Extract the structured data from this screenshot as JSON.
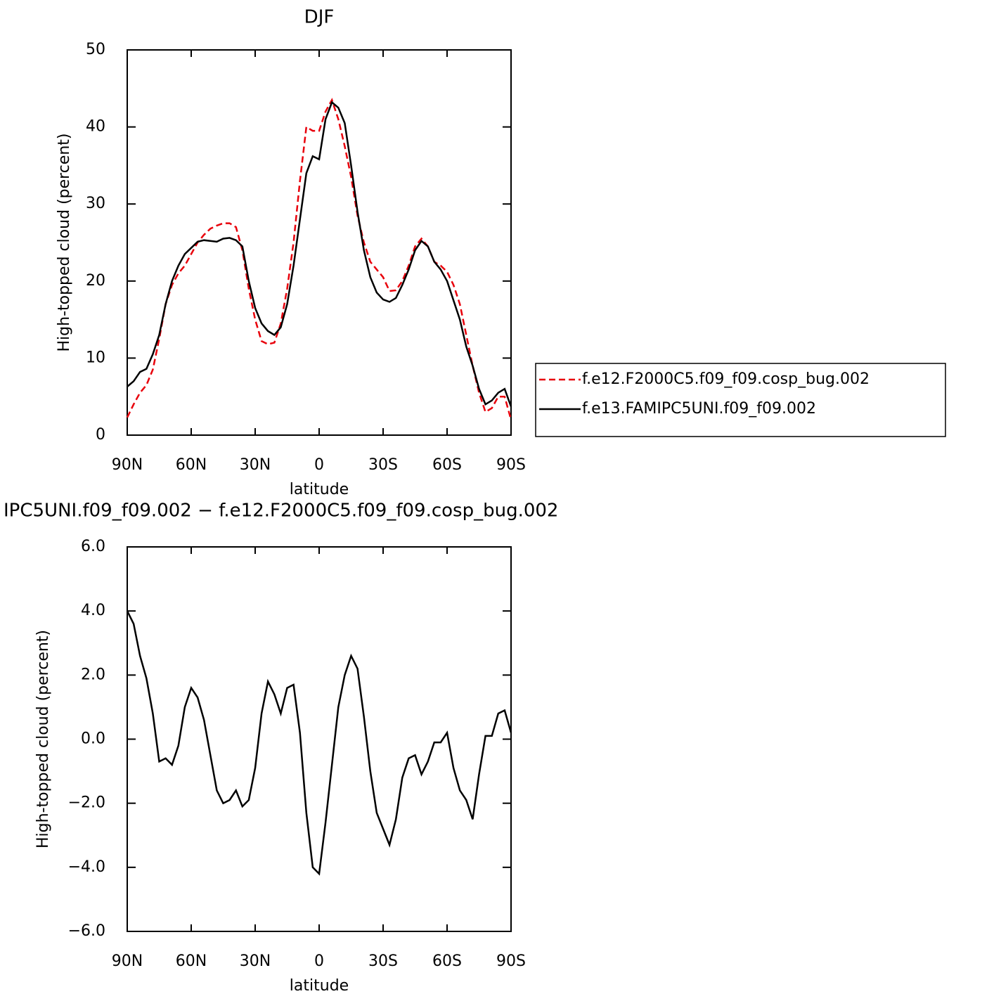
{
  "chart_data": [
    {
      "type": "line",
      "title": "DJF",
      "xlabel": "latitude",
      "ylabel": "High-topped cloud (percent)",
      "x": [
        90,
        87,
        84,
        81,
        78,
        75,
        72,
        69,
        66,
        63,
        60,
        57,
        54,
        51,
        48,
        45,
        42,
        39,
        36,
        33,
        30,
        27,
        24,
        21,
        18,
        15,
        12,
        9,
        6,
        3,
        0,
        -3,
        -6,
        -9,
        -12,
        -15,
        -18,
        -21,
        -24,
        -27,
        -30,
        -33,
        -36,
        -39,
        -42,
        -45,
        -48,
        -51,
        -54,
        -57,
        -60,
        -63,
        -66,
        -69,
        -72,
        -75,
        -78,
        -81,
        -84,
        -87,
        -90
      ],
      "series": [
        {
          "name": "f.e12.F2000C5.f09_f09.cosp_bug.002",
          "color": "#e8000b",
          "dashed": true,
          "values": [
            2.3,
            4,
            5.5,
            6.5,
            8.5,
            12.5,
            17,
            19.5,
            21,
            22,
            23.5,
            25,
            26,
            26.8,
            27.2,
            27.5,
            27.5,
            27,
            24,
            19,
            15,
            12.2,
            11.8,
            12,
            14.5,
            19,
            25,
            33,
            40,
            39.5,
            39.5,
            42,
            43.5,
            41,
            37.5,
            33.5,
            28.5,
            25,
            22.5,
            21.5,
            20.5,
            18.7,
            18.8,
            20,
            22,
            24.5,
            25.5,
            24.5,
            22.5,
            22,
            21.2,
            19.5,
            17,
            13,
            9,
            5.5,
            3,
            3.5,
            5,
            5,
            2
          ]
        },
        {
          "name": "f.e13.FAMIPC5UNI.f09_f09.002",
          "color": "#000000",
          "dashed": false,
          "values": [
            6.3,
            7,
            8.2,
            8.6,
            10.5,
            13,
            17,
            20,
            22,
            23.5,
            24.3,
            25.1,
            25.3,
            25.2,
            25.1,
            25.5,
            25.6,
            25.3,
            24.5,
            20,
            16.5,
            14.5,
            13.5,
            13,
            14,
            17,
            22,
            28,
            34,
            36.2,
            35.8,
            41,
            43.2,
            42.5,
            40.5,
            35,
            29,
            24,
            20.5,
            18.5,
            17.6,
            17.3,
            17.8,
            19.5,
            21.5,
            24,
            25.2,
            24.5,
            22.5,
            21.5,
            20,
            17.5,
            15,
            11.5,
            9,
            6,
            4,
            4.5,
            5.5,
            6,
            3.7
          ]
        }
      ],
      "xlim": [
        90,
        -90
      ],
      "xticks": [
        {
          "value": 90,
          "label": "90N"
        },
        {
          "value": 60,
          "label": "60N"
        },
        {
          "value": 30,
          "label": "30N"
        },
        0,
        {
          "value": -30,
          "label": "30S"
        },
        {
          "value": -60,
          "label": "60S"
        },
        {
          "value": -90,
          "label": "90S"
        }
      ],
      "ylim": [
        0,
        50
      ],
      "yticks": [
        0,
        10,
        20,
        30,
        40,
        50
      ],
      "legend": "right"
    },
    {
      "type": "line",
      "title": "IPC5UNI.f09_f09.002 − f.e12.F2000C5.f09_f09.cosp_bug.002",
      "xlabel": "latitude",
      "ylabel": "High-topped cloud (percent)",
      "x": [
        90,
        87,
        84,
        81,
        78,
        75,
        72,
        69,
        66,
        63,
        60,
        57,
        54,
        51,
        48,
        45,
        42,
        39,
        36,
        33,
        30,
        27,
        24,
        21,
        18,
        15,
        12,
        9,
        6,
        3,
        0,
        -3,
        -6,
        -9,
        -12,
        -15,
        -18,
        -21,
        -24,
        -27,
        -30,
        -33,
        -36,
        -39,
        -42,
        -45,
        -48,
        -51,
        -54,
        -57,
        -60,
        -63,
        -66,
        -69,
        -72,
        -75,
        -78,
        -81,
        -84,
        -87,
        -90
      ],
      "series": [
        {
          "color": "#000000",
          "dashed": false,
          "values": [
            4.0,
            3.6,
            2.6,
            1.9,
            0.8,
            -0.7,
            -0.6,
            -0.8,
            -0.2,
            1.0,
            1.6,
            1.3,
            0.6,
            -0.5,
            -1.6,
            -2.0,
            -1.9,
            -1.6,
            -2.1,
            -1.9,
            -0.9,
            0.8,
            1.8,
            1.4,
            0.8,
            1.6,
            1.7,
            0.2,
            -2.3,
            -4.0,
            -4.2,
            -2.6,
            -0.8,
            1.0,
            2.0,
            2.6,
            2.2,
            0.7,
            -1.0,
            -2.3,
            -2.8,
            -3.3,
            -2.5,
            -1.2,
            -0.6,
            -0.5,
            -1.1,
            -0.7,
            -0.1,
            -0.1,
            0.2,
            -0.9,
            -1.6,
            -1.9,
            -2.5,
            -1.1,
            0.1,
            0.1,
            0.8,
            0.9,
            0.2
          ]
        }
      ],
      "xlim": [
        90,
        -90
      ],
      "xticks": [
        {
          "value": 90,
          "label": "90N"
        },
        {
          "value": 60,
          "label": "60N"
        },
        {
          "value": 30,
          "label": "30N"
        },
        0,
        {
          "value": -30,
          "label": "30S"
        },
        {
          "value": -60,
          "label": "60S"
        },
        {
          "value": -90,
          "label": "90S"
        }
      ],
      "ylim": [
        -6,
        6
      ],
      "yticks": [
        {
          "value": -6,
          "label": "−6.0"
        },
        {
          "value": -4,
          "label": "−4.0"
        },
        {
          "value": -2,
          "label": "−2.0"
        },
        {
          "value": 0,
          "label": "0.0"
        },
        {
          "value": 2,
          "label": "2.0"
        },
        {
          "value": 4,
          "label": "4.0"
        },
        {
          "value": 6,
          "label": "6.0"
        }
      ]
    }
  ]
}
